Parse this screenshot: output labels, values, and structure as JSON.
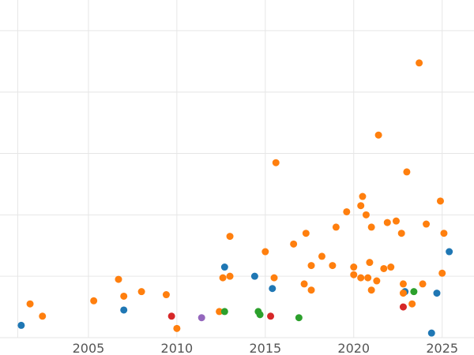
{
  "chart_data": {
    "type": "scatter",
    "title": "",
    "xlabel": "",
    "ylabel": "",
    "xlim": [
      2000,
      2026.8
    ],
    "ylim": [
      0,
      11
    ],
    "x_ticks": [
      2005,
      2010,
      2015,
      2020,
      2025
    ],
    "x_tick_labels": [
      "2005",
      "2010",
      "2015",
      "2020",
      "2025"
    ],
    "y_gridlines": [
      0,
      2,
      4,
      6,
      8,
      10
    ],
    "grid": true,
    "legend": "none",
    "colors": {
      "blue": "#1f77b4",
      "orange": "#ff7f0e",
      "green": "#2ca02c",
      "red": "#d62728",
      "purple": "#9467bd"
    },
    "series": [
      {
        "color": "blue",
        "points": [
          {
            "x": 2001.2,
            "y": 0.4
          },
          {
            "x": 2007.0,
            "y": 0.9
          },
          {
            "x": 2012.7,
            "y": 2.3
          },
          {
            "x": 2014.4,
            "y": 2.0
          },
          {
            "x": 2015.4,
            "y": 1.6
          },
          {
            "x": 2022.9,
            "y": 1.5
          },
          {
            "x": 2024.7,
            "y": 1.45
          },
          {
            "x": 2025.4,
            "y": 2.8
          },
          {
            "x": 2024.4,
            "y": 0.15
          }
        ]
      },
      {
        "color": "orange",
        "points": [
          {
            "x": 2001.7,
            "y": 1.1
          },
          {
            "x": 2002.4,
            "y": 0.7
          },
          {
            "x": 2005.3,
            "y": 1.2
          },
          {
            "x": 2006.7,
            "y": 1.9
          },
          {
            "x": 2007.0,
            "y": 1.35
          },
          {
            "x": 2008.0,
            "y": 1.5
          },
          {
            "x": 2009.4,
            "y": 1.4
          },
          {
            "x": 2010.0,
            "y": 0.3
          },
          {
            "x": 2012.4,
            "y": 0.85
          },
          {
            "x": 2012.6,
            "y": 1.95
          },
          {
            "x": 2013.0,
            "y": 2.0
          },
          {
            "x": 2013.0,
            "y": 3.3
          },
          {
            "x": 2015.0,
            "y": 2.8
          },
          {
            "x": 2015.5,
            "y": 1.95
          },
          {
            "x": 2015.6,
            "y": 5.7
          },
          {
            "x": 2016.6,
            "y": 3.05
          },
          {
            "x": 2017.2,
            "y": 1.75
          },
          {
            "x": 2017.3,
            "y": 3.4
          },
          {
            "x": 2017.6,
            "y": 1.55
          },
          {
            "x": 2017.6,
            "y": 2.35
          },
          {
            "x": 2018.2,
            "y": 2.65
          },
          {
            "x": 2018.8,
            "y": 2.35
          },
          {
            "x": 2019.0,
            "y": 3.6
          },
          {
            "x": 2019.6,
            "y": 4.1
          },
          {
            "x": 2020.0,
            "y": 2.05
          },
          {
            "x": 2020.0,
            "y": 2.3
          },
          {
            "x": 2020.4,
            "y": 4.3
          },
          {
            "x": 2020.4,
            "y": 1.95
          },
          {
            "x": 2020.5,
            "y": 4.6
          },
          {
            "x": 2020.7,
            "y": 4.0
          },
          {
            "x": 2020.8,
            "y": 1.95
          },
          {
            "x": 2020.9,
            "y": 2.45
          },
          {
            "x": 2021.0,
            "y": 3.6
          },
          {
            "x": 2021.0,
            "y": 1.55
          },
          {
            "x": 2021.3,
            "y": 1.85
          },
          {
            "x": 2021.4,
            "y": 6.6
          },
          {
            "x": 2021.7,
            "y": 2.25
          },
          {
            "x": 2021.9,
            "y": 3.75
          },
          {
            "x": 2022.1,
            "y": 2.3
          },
          {
            "x": 2022.4,
            "y": 3.8
          },
          {
            "x": 2022.7,
            "y": 3.4
          },
          {
            "x": 2022.8,
            "y": 1.75
          },
          {
            "x": 2022.8,
            "y": 1.45
          },
          {
            "x": 2023.0,
            "y": 5.4
          },
          {
            "x": 2023.3,
            "y": 1.1
          },
          {
            "x": 2023.7,
            "y": 8.95
          },
          {
            "x": 2023.9,
            "y": 1.75
          },
          {
            "x": 2024.1,
            "y": 3.7
          },
          {
            "x": 2024.9,
            "y": 4.45
          },
          {
            "x": 2025.0,
            "y": 2.1
          },
          {
            "x": 2025.1,
            "y": 3.4
          }
        ]
      },
      {
        "color": "green",
        "points": [
          {
            "x": 2012.7,
            "y": 0.85
          },
          {
            "x": 2014.6,
            "y": 0.85
          },
          {
            "x": 2014.7,
            "y": 0.75
          },
          {
            "x": 2016.9,
            "y": 0.65
          },
          {
            "x": 2023.4,
            "y": 1.5
          }
        ]
      },
      {
        "color": "red",
        "points": [
          {
            "x": 2009.7,
            "y": 0.7
          },
          {
            "x": 2015.3,
            "y": 0.7
          },
          {
            "x": 2022.8,
            "y": 1.0
          }
        ]
      },
      {
        "color": "purple",
        "points": [
          {
            "x": 2011.4,
            "y": 0.65
          }
        ]
      }
    ]
  }
}
